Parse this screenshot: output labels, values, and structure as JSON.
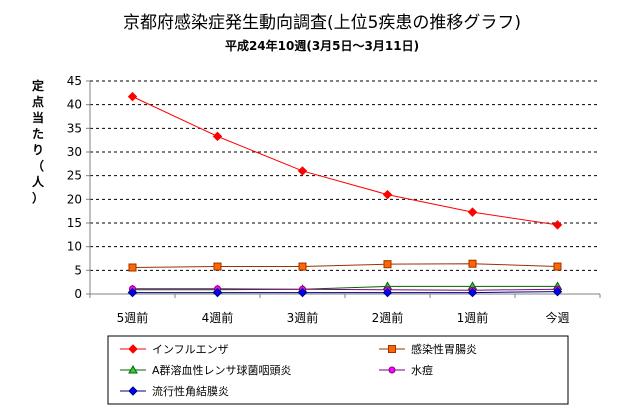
{
  "chart_data": {
    "type": "line",
    "title": "京都府感染症発生動向調査(上位5疾患の推移グラフ)",
    "subtitle": "平成24年10週(3月5日～3月11日)",
    "ylabel": "定点当たり（人）",
    "xlabel": "",
    "categories": [
      "5週前",
      "4週前",
      "3週前",
      "2週前",
      "1週前",
      "今週"
    ],
    "ylim": [
      0,
      45
    ],
    "yticks": [
      0,
      5,
      10,
      15,
      20,
      25,
      30,
      35,
      40,
      45
    ],
    "grid": "horizontal-dashed",
    "legend_position": "bottom",
    "series": [
      {
        "name": "インフルエンザ",
        "marker": "diamond",
        "color": "#ff0000",
        "fill": "#ff0000",
        "values": [
          41.7,
          33.3,
          26.0,
          21.0,
          17.3,
          14.6
        ]
      },
      {
        "name": "感染性胃腸炎",
        "marker": "square",
        "color": "#993300",
        "fill": "#ff6600",
        "values": [
          5.6,
          5.8,
          5.8,
          6.3,
          6.4,
          5.8
        ]
      },
      {
        "name": "A群溶血性レンサ球菌咽頭炎",
        "marker": "triangle",
        "color": "#006600",
        "fill": "#33cc33",
        "values": [
          0.9,
          0.9,
          1.0,
          1.6,
          1.6,
          1.6
        ]
      },
      {
        "name": "水痘",
        "marker": "circle",
        "color": "#800080",
        "fill": "#ff00ff",
        "values": [
          1.1,
          1.1,
          1.0,
          0.9,
          0.8,
          1.0
        ]
      },
      {
        "name": "流行性角結膜炎",
        "marker": "diamond",
        "color": "#000080",
        "fill": "#0000ff",
        "values": [
          0.3,
          0.3,
          0.3,
          0.3,
          0.3,
          0.5
        ]
      }
    ]
  }
}
